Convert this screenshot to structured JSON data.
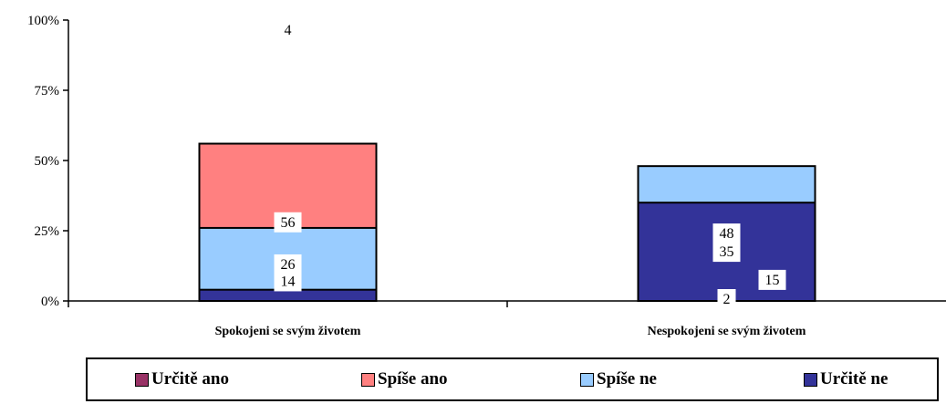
{
  "chart_data": {
    "type": "bar",
    "stacked": true,
    "percent": true,
    "categories": [
      "Spokojeni se svým životem",
      "Nespokojeni se svým životem"
    ],
    "series": [
      {
        "name": "Určitě ano",
        "values": [
          14,
          2
        ],
        "color": "#993366"
      },
      {
        "name": "Spíše ano",
        "values": [
          56,
          15
        ],
        "color": "#ff8080"
      },
      {
        "name": "Spíše ne",
        "values": [
          26,
          48
        ],
        "color": "#99ccff"
      },
      {
        "name": "Určitě ne",
        "values": [
          4,
          35
        ],
        "color": "#333399"
      }
    ],
    "yticks": [
      "0%",
      "25%",
      "50%",
      "75%",
      "100%"
    ],
    "ylim": [
      0,
      100
    ],
    "grid": false,
    "legend": "bottom"
  }
}
